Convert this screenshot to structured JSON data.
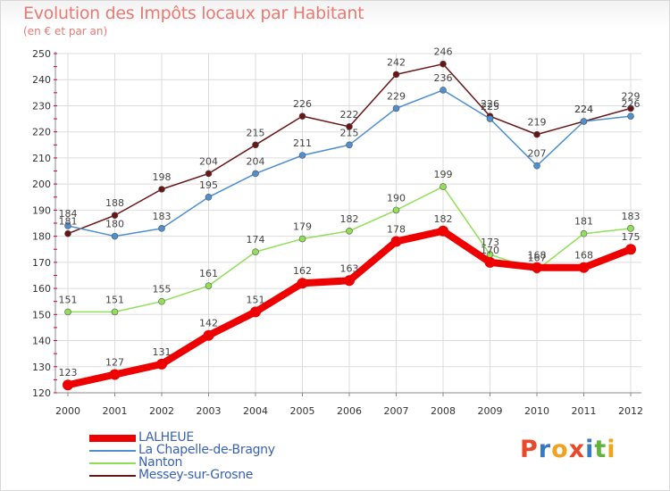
{
  "header": {
    "title": "Evolution des Impôts locaux par Habitant",
    "subtitle": "(en € et par an)"
  },
  "logo": {
    "text": "Proxiti",
    "colors": [
      "#e9492a",
      "#3a78c2",
      "#f0a41e",
      "#e9492a",
      "#3a78c2",
      "#61b33c",
      "#f0a41e"
    ]
  },
  "colors": {
    "title": "#e87a73",
    "legend_text": "#3a62b0",
    "axis": "#888888",
    "grid": "#dddddd",
    "tick_marks": "#cc0044"
  },
  "chart_data": {
    "type": "line",
    "title": "Evolution des Impôts locaux par Habitant",
    "subtitle": "(en € et par an)",
    "x": [
      2000,
      2001,
      2002,
      2003,
      2004,
      2005,
      2006,
      2007,
      2008,
      2009,
      2010,
      2011,
      2012
    ],
    "ylim": [
      120,
      250
    ],
    "ytick_step": 10,
    "grid": true,
    "legend_position": "bottom-left",
    "series": [
      {
        "name": "LALHEUE",
        "color": "#ee0000",
        "values": [
          123,
          127,
          131,
          142,
          151,
          162,
          163,
          178,
          182,
          170,
          168,
          168,
          175
        ],
        "emphasis": true
      },
      {
        "name": "La Chapelle-de-Bragny",
        "color": "#4f8fd0",
        "values": [
          184,
          180,
          183,
          195,
          204,
          211,
          215,
          229,
          236,
          225,
          207,
          224,
          226
        ]
      },
      {
        "name": "Nanton",
        "color": "#90df57",
        "values": [
          151,
          151,
          155,
          161,
          174,
          179,
          182,
          190,
          199,
          173,
          167,
          181,
          183
        ]
      },
      {
        "name": "Messey-sur-Grosne",
        "color": "#6a1515",
        "values": [
          181,
          188,
          198,
          204,
          215,
          226,
          222,
          242,
          246,
          226,
          219,
          224,
          229
        ]
      }
    ]
  }
}
